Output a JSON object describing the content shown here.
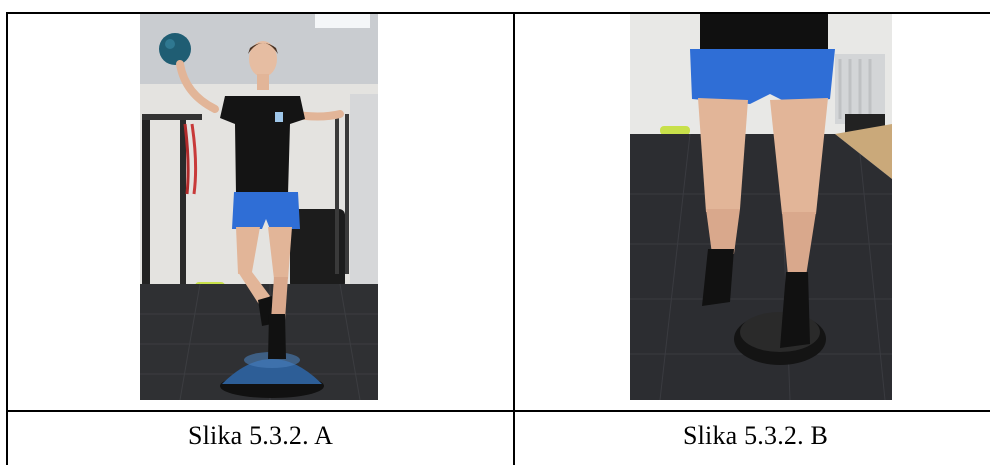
{
  "figure_table": {
    "cells": [
      {
        "photo_name": "woman-balancing-on-bosu-ball-photo",
        "caption": "Slika 5.3.2. A"
      },
      {
        "photo_name": "legs-balancing-on-balance-cushion-photo",
        "caption": "Slika 5.3.2. B"
      }
    ]
  }
}
